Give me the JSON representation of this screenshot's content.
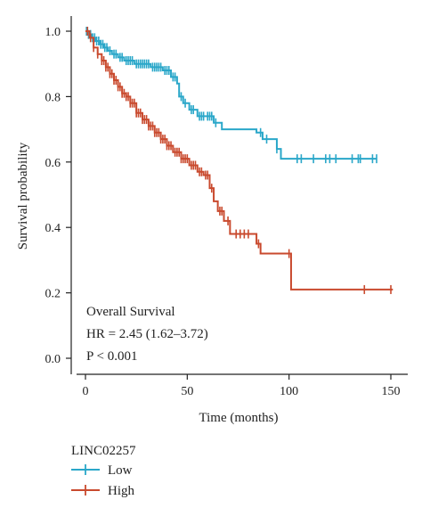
{
  "chart_data": {
    "type": "line",
    "title": "",
    "xlabel": "Time (months)",
    "ylabel": "Survival probability",
    "xlim": [
      0,
      150
    ],
    "ylim": [
      0.0,
      1.0
    ],
    "x_ticks": [
      0,
      50,
      100,
      150
    ],
    "y_ticks": [
      0.0,
      0.2,
      0.4,
      0.6,
      0.8,
      1.0
    ],
    "x_tick_labels": [
      "0",
      "50",
      "100",
      "150"
    ],
    "y_tick_labels": [
      "0.0",
      "0.2",
      "0.4",
      "0.6",
      "0.8",
      "1.0"
    ],
    "grid": false,
    "annotations": [
      "Overall Survival",
      "HR = 2.45 (1.62–3.72)",
      "P < 0.001"
    ],
    "legend": {
      "title": "LINC02257",
      "position": "bottom-left"
    },
    "series": [
      {
        "name": "Low",
        "color": "#2aa7c9",
        "steps": [
          [
            0,
            1.0
          ],
          [
            1,
            0.99
          ],
          [
            3,
            0.98
          ],
          [
            5,
            0.97
          ],
          [
            7,
            0.96
          ],
          [
            9,
            0.95
          ],
          [
            11,
            0.94
          ],
          [
            13,
            0.93
          ],
          [
            16,
            0.92
          ],
          [
            19,
            0.91
          ],
          [
            24,
            0.9
          ],
          [
            32,
            0.89
          ],
          [
            38,
            0.88
          ],
          [
            42,
            0.86
          ],
          [
            45,
            0.84
          ],
          [
            46,
            0.8
          ],
          [
            48,
            0.78
          ],
          [
            51,
            0.76
          ],
          [
            55,
            0.74
          ],
          [
            63,
            0.72
          ],
          [
            67,
            0.7
          ],
          [
            84,
            0.69
          ],
          [
            87,
            0.67
          ],
          [
            94,
            0.64
          ],
          [
            96,
            0.61
          ],
          [
            143,
            0.61
          ]
        ],
        "censors": [
          0.5,
          1.5,
          2.5,
          3.5,
          4.5,
          5.5,
          6.5,
          7.5,
          8.5,
          9.5,
          10.5,
          12,
          14,
          15,
          17,
          18,
          20,
          21,
          22,
          23,
          25,
          26,
          27,
          28,
          29,
          30,
          31,
          33,
          34,
          35,
          36,
          37,
          39,
          40,
          41,
          43,
          44,
          47,
          49,
          52,
          53,
          56,
          57,
          58,
          60,
          61,
          62,
          64,
          86,
          89,
          94,
          104,
          106,
          112,
          118,
          120,
          123,
          131,
          134,
          135,
          141,
          143
        ]
      },
      {
        "name": "High",
        "color": "#c94a2e",
        "steps": [
          [
            0,
            1.0
          ],
          [
            2,
            0.98
          ],
          [
            4,
            0.95
          ],
          [
            6,
            0.93
          ],
          [
            8,
            0.91
          ],
          [
            10,
            0.89
          ],
          [
            12,
            0.87
          ],
          [
            14,
            0.85
          ],
          [
            16,
            0.83
          ],
          [
            18,
            0.81
          ],
          [
            20,
            0.8
          ],
          [
            22,
            0.78
          ],
          [
            25,
            0.75
          ],
          [
            28,
            0.73
          ],
          [
            31,
            0.71
          ],
          [
            34,
            0.69
          ],
          [
            37,
            0.67
          ],
          [
            40,
            0.65
          ],
          [
            43,
            0.63
          ],
          [
            47,
            0.61
          ],
          [
            51,
            0.59
          ],
          [
            55,
            0.57
          ],
          [
            58,
            0.56
          ],
          [
            61,
            0.52
          ],
          [
            63,
            0.48
          ],
          [
            65,
            0.45
          ],
          [
            68,
            0.42
          ],
          [
            71,
            0.38
          ],
          [
            84,
            0.35
          ],
          [
            86,
            0.32
          ],
          [
            101,
            0.21
          ],
          [
            151,
            0.21
          ]
        ],
        "censors": [
          1,
          2.5,
          4,
          6,
          8,
          9,
          10,
          11,
          12,
          13,
          14,
          15,
          16,
          17,
          18,
          19,
          20,
          21,
          22,
          23,
          24,
          25,
          26,
          27,
          28,
          29,
          30,
          31,
          32,
          33,
          34,
          35,
          36,
          37,
          38,
          39,
          40,
          41,
          42,
          44,
          45,
          46,
          47,
          48,
          49,
          50,
          52,
          53,
          54,
          56,
          57,
          59,
          60,
          62,
          66,
          67,
          70,
          74,
          76,
          78,
          80,
          85,
          100,
          137,
          150
        ]
      }
    ]
  }
}
